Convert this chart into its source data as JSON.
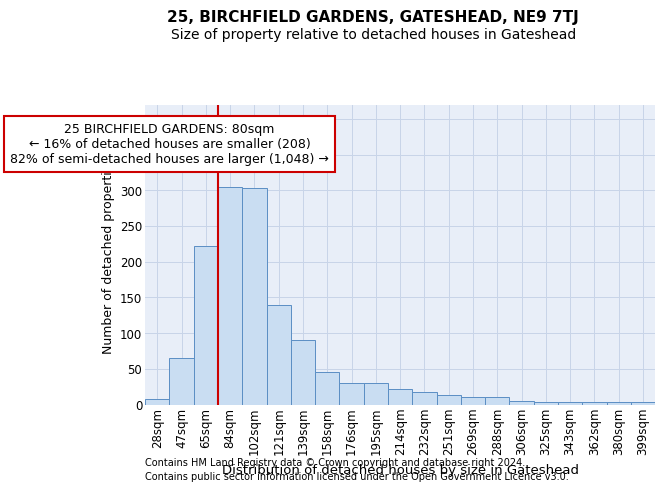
{
  "title1": "25, BIRCHFIELD GARDENS, GATESHEAD, NE9 7TJ",
  "title2": "Size of property relative to detached houses in Gateshead",
  "xlabel": "Distribution of detached houses by size in Gateshead",
  "ylabel": "Number of detached properties",
  "categories": [
    "28sqm",
    "47sqm",
    "65sqm",
    "84sqm",
    "102sqm",
    "121sqm",
    "139sqm",
    "158sqm",
    "176sqm",
    "195sqm",
    "214sqm",
    "232sqm",
    "251sqm",
    "269sqm",
    "288sqm",
    "306sqm",
    "325sqm",
    "343sqm",
    "362sqm",
    "380sqm",
    "399sqm"
  ],
  "values": [
    8,
    65,
    222,
    305,
    303,
    140,
    90,
    45,
    30,
    30,
    22,
    17,
    13,
    11,
    10,
    5,
    4,
    4,
    3,
    3,
    4
  ],
  "bar_color": "#c9ddf2",
  "bar_edge_color": "#5b8ec4",
  "bar_edge_width": 0.7,
  "redline_index": 3,
  "redline_color": "#cc0000",
  "annotation_line1": "25 BIRCHFIELD GARDENS: 80sqm",
  "annotation_line2": "← 16% of detached houses are smaller (208)",
  "annotation_line3": "82% of semi-detached houses are larger (1,048) →",
  "annotation_box_color": "#ffffff",
  "annotation_box_edge": "#cc0000",
  "footer1": "Contains HM Land Registry data © Crown copyright and database right 2024.",
  "footer2": "Contains public sector information licensed under the Open Government Licence v3.0.",
  "ylim": [
    0,
    420
  ],
  "yticks": [
    0,
    50,
    100,
    150,
    200,
    250,
    300,
    350,
    400
  ],
  "grid_color": "#c8d4e8",
  "background_color": "#e8eef8",
  "title1_fontsize": 11,
  "title2_fontsize": 10,
  "xlabel_fontsize": 9.5,
  "ylabel_fontsize": 9,
  "tick_fontsize": 8.5,
  "annotation_fontsize": 9,
  "footer_fontsize": 7
}
